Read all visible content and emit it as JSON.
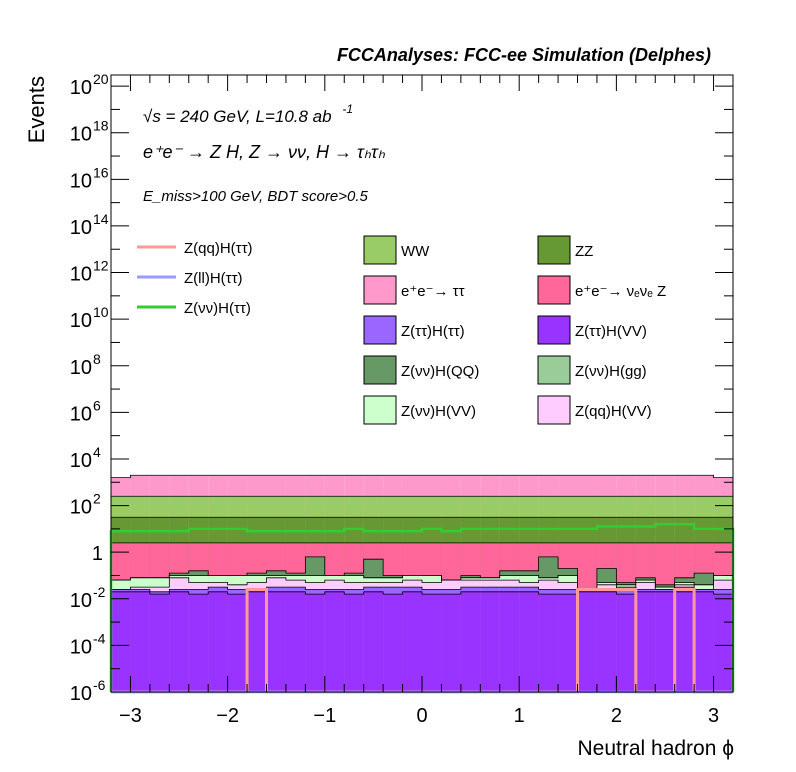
{
  "header": {
    "title": "FCCAnalyses: FCC-ee Simulation (Delphes)"
  },
  "annotations": {
    "sqrt_s": "√s = 240 GeV, L=10.8 ab",
    "lumi_exp": "-1",
    "process": "e⁺e⁻ → Z H, Z → νν, H → τₕτₕ",
    "cuts": "E_miss>100 GeV, BDT score>0.5"
  },
  "colors": {
    "WW": "#99cc66",
    "ZZ": "#669933",
    "ee_tautau": "#ff99cc",
    "ee_nunuZ": "#ff6699",
    "Ztautau_Htautau": "#9966ff",
    "Ztautau_HVV": "#9933ff",
    "Znunu_HQQ": "#669966",
    "Znunu_Hgg": "#99cc99",
    "Znunu_HVV": "#ccffcc",
    "Zqq_HVV": "#ffccff",
    "sig_qq": "#ff9999",
    "sig_ll": "#9999ff",
    "sig_nunu": "#33cc33"
  },
  "chart_data": {
    "type": "histogram-stacked",
    "xlabel": "Neutral hadron ϕ",
    "ylabel": "Events",
    "xlim": [
      -3.2,
      3.2
    ],
    "ylim": [
      1e-06,
      3e+20
    ],
    "log_y": true,
    "x_ticks": [
      "−3",
      "−2",
      "−1",
      "0",
      "1",
      "2",
      "3"
    ],
    "y_ticks": [
      {
        "base": "10",
        "exp": "20"
      },
      {
        "base": "10",
        "exp": "18"
      },
      {
        "base": "10",
        "exp": "16"
      },
      {
        "base": "10",
        "exp": "14"
      },
      {
        "base": "10",
        "exp": "12"
      },
      {
        "base": "10",
        "exp": "10"
      },
      {
        "base": "10",
        "exp": "8"
      },
      {
        "base": "10",
        "exp": "6"
      },
      {
        "base": "10",
        "exp": "4"
      },
      {
        "base": "10",
        "exp": "2"
      },
      {
        "base": "1",
        "exp": ""
      },
      {
        "base": "10",
        "exp": "-2"
      },
      {
        "base": "10",
        "exp": "-4"
      },
      {
        "base": "10",
        "exp": "-6"
      }
    ],
    "legend_signal": [
      {
        "key": "sig_qq",
        "label": "Z(qq)H(ττ)"
      },
      {
        "key": "sig_ll",
        "label": "Z(ll)H(ττ)"
      },
      {
        "key": "sig_nunu",
        "label": "Z(νν)H(ττ)"
      }
    ],
    "legend_background": [
      {
        "key": "WW",
        "label": "WW"
      },
      {
        "key": "ZZ",
        "label": "ZZ"
      },
      {
        "key": "ee_tautau",
        "label": "e⁺e⁻→ ττ"
      },
      {
        "key": "ee_nunuZ",
        "label": "e⁺e⁻→ νₑνₑ Z"
      },
      {
        "key": "Ztautau_Htautau",
        "label": "Z(ττ)H(ττ)"
      },
      {
        "key": "Ztautau_HVV",
        "label": "Z(ττ)H(VV)"
      },
      {
        "key": "Znunu_HQQ",
        "label": "Z(νν)H(QQ)"
      },
      {
        "key": "Znunu_Hgg",
        "label": "Z(νν)H(gg)"
      },
      {
        "key": "Znunu_HVV",
        "label": "Z(νν)H(VV)"
      },
      {
        "key": "Zqq_HVV",
        "label": "Z(qq)H(VV)"
      }
    ],
    "bins": 32,
    "stack_tops_log10": {
      "Ztautau_HVV": [
        -1.7,
        -1.7,
        -1.8,
        -1.7,
        -1.8,
        -1.7,
        -1.8,
        -1.7,
        -1.7,
        -1.7,
        -1.8,
        -1.7,
        -1.8,
        -1.7,
        -1.8,
        -1.7,
        -1.8,
        -1.8,
        -1.7,
        -1.7,
        -1.7,
        -1.7,
        -1.8,
        -1.8,
        -1.7,
        -1.7,
        -1.8,
        -1.7,
        -1.7,
        -1.7,
        -1.7,
        -1.8
      ],
      "Ztautau_Htautau": [
        -1.6,
        -1.6,
        -1.7,
        -1.6,
        -1.6,
        -1.5,
        -1.6,
        -1.6,
        -1.5,
        -1.5,
        -1.6,
        -1.6,
        -1.6,
        -1.5,
        -1.5,
        -1.5,
        -1.6,
        -1.6,
        -1.5,
        -1.5,
        -1.5,
        -1.5,
        -1.6,
        -1.6,
        -1.6,
        -1.6,
        -1.5,
        -1.6,
        -1.6,
        -1.5,
        -1.6,
        -1.6
      ],
      "Zqq_HVV": [
        -1.6,
        -1.5,
        -1.5,
        -1.1,
        -1.3,
        -1.3,
        -1.4,
        -1.3,
        -1.1,
        -1.2,
        -1.3,
        -1.2,
        -1.3,
        -1.3,
        -1.3,
        -1.2,
        -1.3,
        -1.2,
        -1.2,
        -1.2,
        -1.2,
        -1.3,
        -1.2,
        -1.3,
        -1.6,
        -1.4,
        -1.6,
        -1.3,
        -1.6,
        -1.4,
        -1.6,
        -1.2
      ],
      "Znunu_HVV": [
        -1.2,
        -1.1,
        -1.1,
        -1.0,
        -1.0,
        -1.0,
        -1.0,
        -1.0,
        -1.0,
        -1.0,
        -1.0,
        -1.0,
        -1.0,
        -1.1,
        -1.1,
        -1.0,
        -1.0,
        -1.2,
        -1.1,
        -1.1,
        -1.0,
        -1.0,
        -1.1,
        -1.0,
        -1.6,
        -1.3,
        -1.4,
        -1.2,
        -1.5,
        -1.3,
        -1.4,
        -1.0
      ],
      "Znunu_Hgg": [
        -1.2,
        -1.1,
        -1.1,
        -1.0,
        -1.0,
        -1.0,
        -1.0,
        -1.0,
        -1.0,
        -1.0,
        -1.0,
        -1.0,
        -1.0,
        -1.1,
        -1.1,
        -1.0,
        -1.0,
        -1.2,
        -1.1,
        -1.1,
        -1.0,
        -1.0,
        -1.1,
        -1.0,
        -1.6,
        -1.3,
        -1.4,
        -1.2,
        -1.5,
        -1.3,
        -1.4,
        -1.0
      ],
      "Znunu_HQQ": [
        -1.2,
        -1.1,
        -1.1,
        -0.9,
        -0.8,
        -1.0,
        -1.0,
        -0.9,
        -0.8,
        -0.9,
        -0.2,
        -1.0,
        -0.9,
        -0.3,
        -1.0,
        -1.1,
        -1.0,
        -1.2,
        -1.0,
        -1.1,
        -0.8,
        -0.8,
        -0.2,
        -0.7,
        -1.6,
        -0.7,
        -1.3,
        -1.1,
        -1.4,
        -1.1,
        -0.9,
        -1.0
      ],
      "ee_nunuZ": [
        0.4,
        0.4,
        0.4,
        0.4,
        0.4,
        0.4,
        0.4,
        0.4,
        0.4,
        0.4,
        0.4,
        0.4,
        0.4,
        0.4,
        0.4,
        0.4,
        0.4,
        0.4,
        0.4,
        0.4,
        0.4,
        0.4,
        0.4,
        0.4,
        0.4,
        0.4,
        0.4,
        0.4,
        0.4,
        0.4,
        0.4,
        0.4
      ],
      "ZZ": [
        1.5,
        1.5,
        1.5,
        1.5,
        1.5,
        1.5,
        1.5,
        1.5,
        1.5,
        1.5,
        1.5,
        1.5,
        1.5,
        1.5,
        1.5,
        1.5,
        1.5,
        1.5,
        1.5,
        1.5,
        1.5,
        1.5,
        1.5,
        1.5,
        1.5,
        1.5,
        1.5,
        1.5,
        1.5,
        1.5,
        1.5,
        1.5
      ],
      "WW": [
        2.4,
        2.4,
        2.4,
        2.4,
        2.4,
        2.4,
        2.4,
        2.4,
        2.4,
        2.4,
        2.4,
        2.4,
        2.4,
        2.4,
        2.4,
        2.4,
        2.4,
        2.4,
        2.4,
        2.4,
        2.4,
        2.4,
        2.4,
        2.4,
        2.4,
        2.4,
        2.4,
        2.4,
        2.4,
        2.4,
        2.4,
        2.4
      ],
      "ee_tautau": [
        3.2,
        3.3,
        3.3,
        3.3,
        3.3,
        3.3,
        3.3,
        3.3,
        3.3,
        3.3,
        3.3,
        3.3,
        3.3,
        3.3,
        3.3,
        3.3,
        3.3,
        3.3,
        3.3,
        3.3,
        3.3,
        3.3,
        3.3,
        3.3,
        3.3,
        3.3,
        3.3,
        3.3,
        3.3,
        3.3,
        3.3,
        3.2
      ]
    },
    "signal_log10": {
      "sig_nunu": [
        0.9,
        0.9,
        0.9,
        0.9,
        1.0,
        1.0,
        1.0,
        0.9,
        0.9,
        0.9,
        0.9,
        0.9,
        1.0,
        0.9,
        0.9,
        0.9,
        1.0,
        0.9,
        1.0,
        1.0,
        1.0,
        1.0,
        1.0,
        1.0,
        1.0,
        1.1,
        1.1,
        1.1,
        1.2,
        1.2,
        1.0,
        1.0
      ],
      "sig_qq": [
        -6,
        -6,
        -6,
        -6,
        -6,
        -6,
        -6,
        -1.6,
        -6,
        -6,
        -6,
        -6,
        -6,
        -6,
        -6,
        -6,
        -6,
        -6,
        -6,
        -6,
        -6,
        -6,
        -6,
        -6,
        -1.6,
        -1.6,
        -1.6,
        -6,
        -6,
        -1.6,
        -6,
        -6
      ],
      "sig_ll": [
        -6,
        -6,
        -6,
        -6,
        -6,
        -6,
        -6,
        -6,
        -6,
        -6,
        -6,
        -6,
        -6,
        -6,
        -6,
        -6,
        -6,
        -6,
        -6,
        -6,
        -6,
        -6,
        -6,
        -6,
        -6,
        -6,
        -6,
        -6,
        -6,
        -6,
        -6,
        -6
      ]
    }
  }
}
